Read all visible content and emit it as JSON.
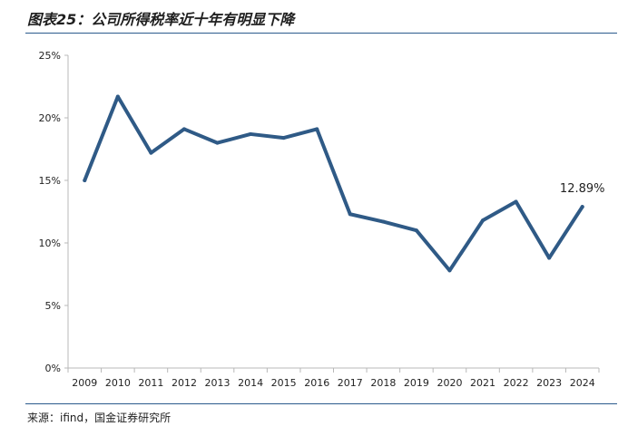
{
  "header": {
    "title": "图表25：公司所得税率近十年有明显下降"
  },
  "footer": {
    "source": "来源：ifind，国金证券研究所"
  },
  "chart_data": {
    "type": "line",
    "categories": [
      "2009",
      "2010",
      "2011",
      "2012",
      "2013",
      "2014",
      "2015",
      "2016",
      "2017",
      "2018",
      "2019",
      "2020",
      "2021",
      "2022",
      "2023",
      "2024"
    ],
    "series": [
      {
        "name": "",
        "values": [
          15.0,
          21.7,
          17.2,
          19.1,
          18.0,
          18.7,
          18.4,
          19.1,
          12.3,
          11.7,
          11.0,
          7.8,
          11.8,
          13.3,
          8.8,
          12.89
        ],
        "color": "#2f5a86"
      }
    ],
    "ylim": [
      0,
      25
    ],
    "yticks": [
      "0%",
      "5%",
      "10%",
      "15%",
      "20%",
      "25%"
    ],
    "ytick_values": [
      0,
      5,
      10,
      15,
      20,
      25
    ],
    "grid": false,
    "annotations": [
      {
        "category": "2024",
        "label": "12.89%"
      }
    ]
  }
}
